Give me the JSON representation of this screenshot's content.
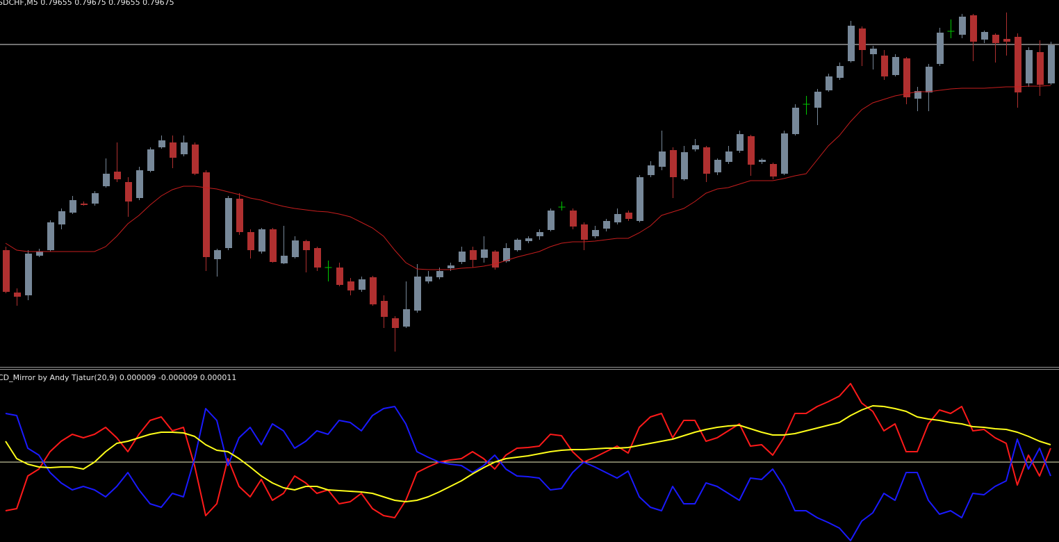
{
  "chart_data": [
    {
      "type": "candlestick",
      "title": "SDCHF,M5  0.79655 0.79675 0.79655 0.79675",
      "ylim": [
        0,
        528
      ],
      "up_color": "#778899",
      "down_color": "#b03030",
      "doji_color": "#00c800",
      "open": [
        168,
        107,
        103,
        160,
        168,
        205,
        222,
        235,
        235,
        260,
        281,
        266,
        243,
        282,
        316,
        323,
        306,
        320,
        280,
        155,
        171,
        242,
        194,
        166,
        198,
        149,
        158,
        181,
        171,
        143,
        143,
        123,
        111,
        129,
        95,
        70,
        58,
        81,
        123,
        129,
        142,
        151,
        168,
        157,
        166,
        152,
        168,
        181,
        188,
        197,
        230,
        225,
        205,
        188,
        199,
        208,
        222,
        210,
        276,
        288,
        312,
        270,
        313,
        316,
        280,
        295,
        311,
        332,
        295,
        292,
        278,
        335,
        378,
        373,
        398,
        416,
        440,
        487,
        450,
        448,
        420,
        444,
        386,
        395,
        436,
        483,
        478,
        506,
        471,
        478,
        472,
        475,
        408,
        453,
        408
      ],
      "high": [
        173,
        113,
        168,
        170,
        211,
        228,
        246,
        238,
        253,
        300,
        323,
        273,
        288,
        316,
        333,
        333,
        333,
        323,
        283,
        170,
        246,
        250,
        198,
        200,
        200,
        203,
        188,
        183,
        173,
        153,
        150,
        128,
        130,
        131,
        103,
        73,
        123,
        148,
        138,
        143,
        150,
        173,
        173,
        188,
        168,
        178,
        185,
        188,
        198,
        228,
        238,
        228,
        208,
        203,
        213,
        228,
        225,
        276,
        296,
        340,
        316,
        318,
        328,
        318,
        300,
        318,
        340,
        334,
        300,
        294,
        340,
        378,
        390,
        400,
        422,
        438,
        498,
        490,
        462,
        456,
        450,
        446,
        403,
        436,
        488,
        500,
        508,
        508,
        484,
        480,
        510,
        480,
        460,
        470,
        468
      ],
      "low": [
        106,
        88,
        96,
        158,
        166,
        198,
        220,
        232,
        232,
        258,
        266,
        216,
        240,
        280,
        314,
        286,
        303,
        276,
        138,
        130,
        168,
        190,
        156,
        163,
        150,
        148,
        156,
        136,
        138,
        123,
        116,
        103,
        108,
        88,
        56,
        22,
        56,
        78,
        120,
        126,
        138,
        148,
        143,
        150,
        140,
        150,
        166,
        178,
        183,
        195,
        225,
        198,
        168,
        185,
        195,
        205,
        210,
        208,
        273,
        283,
        243,
        268,
        310,
        266,
        276,
        292,
        308,
        275,
        292,
        270,
        276,
        333,
        363,
        348,
        396,
        413,
        438,
        433,
        428,
        413,
        418,
        378,
        368,
        368,
        433,
        473,
        473,
        440,
        466,
        438,
        448,
        373,
        403,
        390,
        406
      ],
      "close": [
        108,
        101,
        163,
        166,
        208,
        224,
        240,
        233,
        250,
        278,
        270,
        238,
        283,
        313,
        326,
        301,
        323,
        278,
        158,
        168,
        243,
        194,
        168,
        198,
        151,
        160,
        182,
        168,
        143,
        143,
        118,
        110,
        126,
        90,
        72,
        56,
        83,
        130,
        130,
        138,
        146,
        166,
        154,
        169,
        143,
        171,
        183,
        185,
        194,
        225,
        230,
        202,
        183,
        197,
        210,
        220,
        213,
        273,
        290,
        310,
        273,
        309,
        319,
        278,
        298,
        310,
        335,
        291,
        298,
        274,
        336,
        373,
        378,
        396,
        418,
        433,
        491,
        456,
        458,
        418,
        446,
        388,
        397,
        432,
        481,
        483,
        504,
        468,
        482,
        466,
        468,
        395,
        456,
        406,
        463
      ],
      "ma": {
        "color": "#c81e1e",
        "values": [
          178,
          168,
          166,
          166,
          166,
          166,
          166,
          166,
          166,
          173,
          188,
          206,
          218,
          233,
          246,
          255,
          260,
          260,
          258,
          256,
          252,
          248,
          243,
          240,
          235,
          231,
          228,
          226,
          224,
          223,
          220,
          216,
          208,
          200,
          188,
          168,
          150,
          141,
          140,
          140,
          140,
          142,
          143,
          145,
          148,
          153,
          158,
          162,
          166,
          173,
          178,
          180,
          180,
          181,
          183,
          185,
          185,
          193,
          203,
          218,
          223,
          228,
          238,
          250,
          256,
          258,
          263,
          268,
          268,
          268,
          271,
          275,
          278,
          298,
          318,
          333,
          353,
          370,
          380,
          385,
          390,
          393,
          396,
          396,
          398,
          400,
          401,
          401,
          401,
          402,
          403,
          403,
          404,
          404,
          405
        ]
      },
      "hline": {
        "value": 464,
        "color": "#e0e0e0"
      }
    },
    {
      "type": "line",
      "title": "CD_Mirror by Andy Tjatur(20,9) 0.000009 -0.000009 0.000011",
      "ylim": [
        -115,
        133
      ],
      "level": {
        "value": 0,
        "color": "#f0f0c0"
      },
      "series": [
        {
          "color": "#ff1a1a",
          "values": [
            -70,
            -67,
            -20,
            -10,
            15,
            30,
            40,
            35,
            40,
            50,
            35,
            15,
            40,
            60,
            65,
            45,
            50,
            -5,
            -77,
            -60,
            5,
            -35,
            -50,
            -25,
            -55,
            -45,
            -20,
            -30,
            -45,
            -40,
            -60,
            -57,
            -45,
            -67,
            -77,
            -80,
            -55,
            -15,
            -7,
            0,
            3,
            5,
            15,
            5,
            -10,
            10,
            20,
            21,
            23,
            40,
            38,
            15,
            0,
            7,
            15,
            23,
            13,
            50,
            65,
            70,
            35,
            60,
            60,
            30,
            35,
            45,
            55,
            23,
            25,
            10,
            35,
            70,
            70,
            80,
            87,
            95,
            113,
            85,
            73,
            45,
            55,
            15,
            15,
            55,
            75,
            70,
            80,
            45,
            47,
            35,
            27,
            -33,
            10,
            -20,
            20
          ]
        },
        {
          "color": "#1a1aff",
          "values": [
            70,
            67,
            20,
            10,
            -15,
            -30,
            -40,
            -35,
            -40,
            -50,
            -35,
            -15,
            -40,
            -60,
            -65,
            -45,
            -50,
            5,
            77,
            60,
            -5,
            35,
            50,
            25,
            55,
            45,
            20,
            30,
            45,
            40,
            60,
            57,
            45,
            67,
            77,
            80,
            55,
            15,
            7,
            0,
            -3,
            -5,
            -15,
            -5,
            10,
            -10,
            -20,
            -21,
            -23,
            -40,
            -38,
            -15,
            0,
            -7,
            -15,
            -23,
            -13,
            -50,
            -65,
            -70,
            -35,
            -60,
            -60,
            -30,
            -35,
            -45,
            -55,
            -23,
            -25,
            -10,
            -35,
            -70,
            -70,
            -80,
            -87,
            -95,
            -113,
            -85,
            -73,
            -45,
            -55,
            -15,
            -15,
            -55,
            -75,
            -70,
            -80,
            -45,
            -47,
            -35,
            -27,
            33,
            -10,
            20,
            -20
          ]
        },
        {
          "color": "#ffff1a",
          "values": [
            30,
            5,
            -3,
            -7,
            -8,
            -7,
            -7,
            -10,
            0,
            15,
            27,
            30,
            35,
            40,
            43,
            43,
            42,
            37,
            25,
            17,
            15,
            5,
            -7,
            -20,
            -30,
            -37,
            -40,
            -35,
            -35,
            -40,
            -41,
            -42,
            -43,
            -45,
            -50,
            -55,
            -57,
            -55,
            -50,
            -43,
            -35,
            -27,
            -17,
            -8,
            0,
            5,
            7,
            9,
            12,
            15,
            17,
            18,
            18,
            19,
            20,
            20,
            21,
            24,
            27,
            30,
            33,
            38,
            43,
            47,
            50,
            52,
            53,
            48,
            43,
            39,
            39,
            41,
            45,
            49,
            53,
            57,
            67,
            75,
            81,
            80,
            77,
            73,
            65,
            62,
            60,
            57,
            55,
            51,
            50,
            48,
            47,
            43,
            37,
            30,
            25
          ]
        }
      ]
    }
  ]
}
